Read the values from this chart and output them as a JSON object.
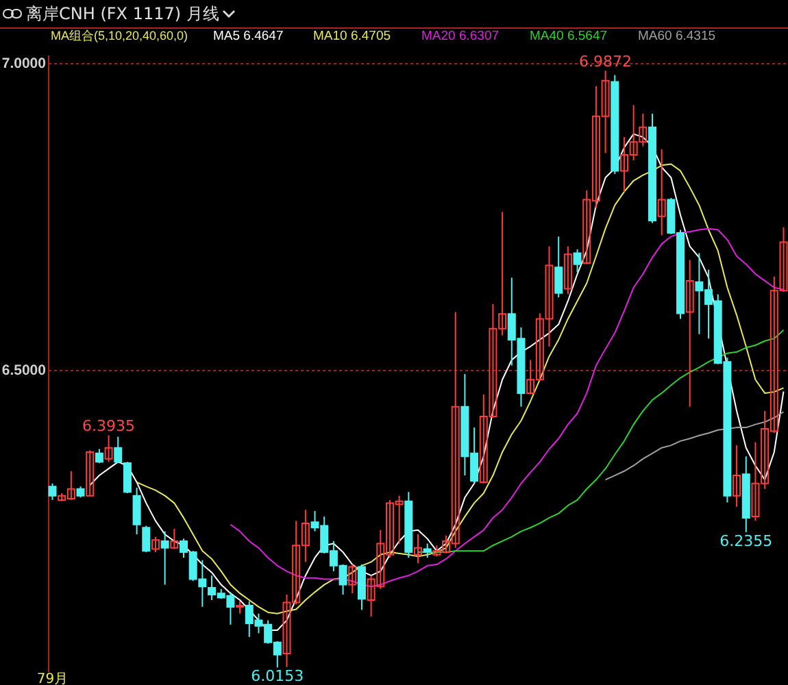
{
  "chart_data": {
    "type": "candlestick",
    "title": "离岸CNH (FX 1117) 月线",
    "legend_title": "MA组合(5,10,20,40,60,0)",
    "categories": [
      "79月",
      null,
      null,
      null,
      null,
      null,
      null,
      null,
      null,
      null,
      null,
      null,
      null,
      null,
      null,
      null,
      null,
      null,
      null,
      null,
      null,
      null,
      null,
      null,
      null,
      null,
      null,
      null,
      null,
      null,
      null,
      null,
      null,
      null,
      null,
      null,
      null,
      null,
      null,
      null,
      null,
      null,
      null,
      null,
      null,
      null,
      null,
      null,
      null,
      null,
      null,
      null,
      null,
      null,
      null,
      null,
      null,
      null,
      null,
      null,
      null,
      null,
      null,
      null,
      null,
      null,
      null,
      null,
      null,
      null,
      null,
      null,
      null,
      null,
      null,
      null,
      null,
      null,
      null
    ],
    "ohlc": [
      [
        6.31,
        6.315,
        6.288,
        6.295
      ],
      [
        6.288,
        6.299,
        6.286,
        6.295
      ],
      [
        6.29,
        6.335,
        6.288,
        6.306
      ],
      [
        6.306,
        6.31,
        6.292,
        6.295
      ],
      [
        6.295,
        6.369,
        6.295,
        6.366
      ],
      [
        6.364,
        6.371,
        6.348,
        6.35
      ],
      [
        6.355,
        6.3935,
        6.35,
        6.373
      ],
      [
        6.373,
        6.391,
        6.348,
        6.35
      ],
      [
        6.348,
        6.35,
        6.299,
        6.301
      ],
      [
        6.295,
        6.308,
        6.232,
        6.248
      ],
      [
        6.243,
        6.246,
        6.203,
        6.205
      ],
      [
        6.208,
        6.228,
        6.203,
        6.223
      ],
      [
        6.221,
        6.237,
        6.15,
        6.21
      ],
      [
        6.21,
        6.241,
        6.208,
        6.221
      ],
      [
        6.221,
        6.225,
        6.194,
        6.203
      ],
      [
        6.203,
        6.205,
        6.156,
        6.159
      ],
      [
        6.159,
        6.19,
        6.114,
        6.147
      ],
      [
        6.145,
        6.165,
        6.125,
        6.134
      ],
      [
        6.136,
        6.143,
        6.127,
        6.129
      ],
      [
        6.132,
        6.138,
        6.085,
        6.114
      ],
      [
        6.114,
        6.123,
        6.103,
        6.116
      ],
      [
        6.116,
        6.123,
        6.065,
        6.087
      ],
      [
        6.092,
        6.103,
        6.071,
        6.083
      ],
      [
        6.085,
        6.092,
        6.054,
        6.056
      ],
      [
        6.056,
        6.058,
        6.0153,
        6.036
      ],
      [
        6.038,
        6.134,
        6.016,
        6.121
      ],
      [
        6.121,
        6.254,
        6.118,
        6.214
      ],
      [
        6.214,
        6.272,
        6.187,
        6.25
      ],
      [
        6.252,
        6.27,
        6.237,
        6.243
      ],
      [
        6.246,
        6.261,
        6.201,
        6.203
      ],
      [
        6.205,
        6.221,
        6.172,
        6.181
      ],
      [
        6.181,
        6.183,
        6.134,
        6.15
      ],
      [
        6.15,
        6.183,
        6.136,
        6.179
      ],
      [
        6.179,
        6.183,
        6.109,
        6.127
      ],
      [
        6.125,
        6.165,
        6.098,
        6.159
      ],
      [
        6.147,
        6.239,
        6.143,
        6.217
      ],
      [
        6.199,
        6.288,
        6.194,
        6.283
      ],
      [
        6.281,
        6.295,
        6.217,
        6.286
      ],
      [
        6.286,
        6.301,
        6.194,
        6.203
      ],
      [
        6.199,
        6.232,
        6.185,
        6.21
      ],
      [
        6.208,
        6.217,
        6.194,
        6.203
      ],
      [
        6.199,
        6.214,
        6.196,
        6.205
      ],
      [
        6.203,
        6.23,
        6.201,
        6.221
      ],
      [
        6.217,
        6.594,
        6.21,
        6.44
      ],
      [
        6.44,
        6.493,
        6.328,
        6.359
      ],
      [
        6.364,
        6.406,
        6.315,
        6.319
      ],
      [
        6.317,
        6.46,
        6.315,
        6.424
      ],
      [
        6.424,
        6.607,
        6.422,
        6.567
      ],
      [
        6.567,
        6.757,
        6.556,
        6.591
      ],
      [
        6.591,
        6.65,
        6.507,
        6.549
      ],
      [
        6.551,
        6.569,
        6.44,
        6.462
      ],
      [
        6.462,
        6.516,
        6.46,
        6.484
      ],
      [
        6.484,
        6.592,
        6.482,
        6.583
      ],
      [
        6.583,
        6.701,
        6.538,
        6.67
      ],
      [
        6.667,
        6.717,
        6.618,
        6.625
      ],
      [
        6.632,
        6.701,
        6.623,
        6.688
      ],
      [
        6.69,
        6.696,
        6.659,
        6.672
      ],
      [
        6.674,
        6.792,
        6.672,
        6.777
      ],
      [
        6.775,
        6.962,
        6.763,
        6.913
      ],
      [
        6.913,
        6.9872,
        6.853,
        6.971
      ],
      [
        6.969,
        6.98,
        6.819,
        6.824
      ],
      [
        6.824,
        6.879,
        6.79,
        6.85
      ],
      [
        6.85,
        6.931,
        6.841,
        6.871
      ],
      [
        6.871,
        6.917,
        6.864,
        6.895
      ],
      [
        6.895,
        6.917,
        6.739,
        6.743
      ],
      [
        6.75,
        6.859,
        6.719,
        6.777
      ],
      [
        6.777,
        6.78,
        6.721,
        6.723
      ],
      [
        6.723,
        6.728,
        6.583,
        6.592
      ],
      [
        6.594,
        6.679,
        6.44,
        6.645
      ],
      [
        6.643,
        6.69,
        6.558,
        6.629
      ],
      [
        6.63,
        6.663,
        6.551,
        6.607
      ],
      [
        6.612,
        6.623,
        6.509,
        6.511
      ],
      [
        6.513,
        6.52,
        6.284,
        6.295
      ],
      [
        6.295,
        6.377,
        6.277,
        6.328
      ],
      [
        6.33,
        6.359,
        6.2355,
        6.259
      ],
      [
        6.261,
        6.382,
        6.254,
        6.315
      ],
      [
        6.315,
        6.433,
        6.306,
        6.404
      ],
      [
        6.4,
        6.652,
        6.397,
        6.629
      ],
      [
        6.629,
        6.732,
        6.627,
        6.708
      ]
    ],
    "series": [
      {
        "name": "MA5 6.4647",
        "type": "line",
        "color": "#ffffff",
        "values": [
          null,
          null,
          null,
          null,
          6.312,
          6.328,
          6.339,
          6.35,
          6.344,
          6.317,
          6.283,
          6.254,
          6.232,
          6.221,
          6.214,
          6.199,
          6.183,
          6.17,
          6.15,
          6.136,
          6.125,
          6.109,
          6.092,
          6.076,
          6.076,
          6.092,
          6.127,
          6.165,
          6.194,
          6.214,
          6.217,
          6.203,
          6.183,
          6.172,
          6.165,
          6.172,
          6.199,
          6.221,
          6.237,
          6.239,
          6.225,
          6.205,
          6.217,
          6.248,
          6.292,
          6.315,
          6.359,
          6.433,
          6.484,
          6.516,
          6.529,
          6.538,
          6.549,
          6.56,
          6.574,
          6.612,
          6.656,
          6.694,
          6.768,
          6.813,
          6.828,
          6.862,
          6.884,
          6.879,
          6.864,
          6.83,
          6.813,
          6.752,
          6.701,
          6.683,
          6.65,
          null,
          null,
          6.433,
          6.373,
          6.344,
          6.321,
          6.366,
          6.4647
        ]
      },
      {
        "name": "MA10 6.4705",
        "type": "line",
        "color": "#e8e85c",
        "values": [
          null,
          null,
          null,
          null,
          null,
          null,
          null,
          null,
          null,
          6.317,
          6.31,
          6.304,
          6.295,
          6.283,
          6.259,
          6.232,
          6.205,
          6.192,
          6.172,
          6.15,
          6.136,
          6.125,
          6.114,
          6.105,
          6.103,
          6.107,
          6.11,
          6.125,
          6.138,
          6.15,
          6.159,
          6.161,
          6.17,
          6.181,
          6.187,
          6.199,
          6.203,
          6.201,
          6.199,
          6.196,
          6.199,
          6.203,
          6.21,
          6.237,
          6.261,
          6.283,
          6.299,
          6.328,
          6.366,
          6.395,
          6.417,
          6.449,
          6.484,
          6.522,
          6.549,
          6.583,
          6.612,
          6.641,
          6.685,
          6.73,
          6.768,
          6.79,
          6.808,
          6.817,
          6.824,
          6.833,
          6.835,
          6.824,
          6.797,
          6.768,
          6.728,
          6.694,
          6.634,
          6.589,
          6.538,
          6.484,
          6.462,
          6.464,
          6.4705
        ]
      },
      {
        "name": "MA20 6.6307",
        "type": "line",
        "color": "#e020e0",
        "values": [
          null,
          null,
          null,
          null,
          null,
          null,
          null,
          null,
          null,
          null,
          null,
          null,
          null,
          null,
          null,
          null,
          null,
          null,
          null,
          6.248,
          6.237,
          6.221,
          6.21,
          6.194,
          6.181,
          6.172,
          6.165,
          6.161,
          6.161,
          6.159,
          6.159,
          6.159,
          6.156,
          6.15,
          6.147,
          6.15,
          6.156,
          6.161,
          6.165,
          6.172,
          6.181,
          6.183,
          6.192,
          6.205,
          6.217,
          6.228,
          6.239,
          6.259,
          6.272,
          6.292,
          6.315,
          6.333,
          6.35,
          6.371,
          6.388,
          6.411,
          6.429,
          6.462,
          6.507,
          6.534,
          6.56,
          6.596,
          6.634,
          6.656,
          6.683,
          6.705,
          6.717,
          6.723,
          6.725,
          6.728,
          6.73,
          6.728,
          6.712,
          6.685,
          6.672,
          6.656,
          6.645,
          6.634,
          6.6307
        ]
      },
      {
        "name": "MA40 6.5647",
        "type": "line",
        "color": "#30d030",
        "values": [
          null,
          null,
          null,
          null,
          null,
          null,
          null,
          null,
          null,
          null,
          null,
          null,
          null,
          null,
          null,
          null,
          null,
          null,
          null,
          null,
          null,
          null,
          null,
          null,
          null,
          null,
          null,
          null,
          null,
          null,
          null,
          null,
          null,
          null,
          null,
          null,
          null,
          null,
          null,
          6.203,
          6.203,
          6.203,
          6.203,
          6.205,
          6.205,
          6.205,
          6.205,
          6.214,
          6.221,
          6.228,
          6.237,
          6.243,
          6.25,
          6.259,
          6.266,
          6.279,
          6.288,
          6.306,
          6.321,
          6.339,
          6.362,
          6.384,
          6.411,
          6.433,
          6.451,
          6.462,
          6.475,
          6.487,
          6.496,
          6.504,
          6.513,
          6.52,
          6.527,
          6.529,
          6.536,
          6.54,
          6.547,
          6.551,
          6.5647
        ]
      },
      {
        "name": "MA60 6.4315",
        "type": "line",
        "color": "#a0a0a0",
        "values": [
          null,
          null,
          null,
          null,
          null,
          null,
          null,
          null,
          null,
          null,
          null,
          null,
          null,
          null,
          null,
          null,
          null,
          null,
          null,
          null,
          null,
          null,
          null,
          null,
          null,
          null,
          null,
          null,
          null,
          null,
          null,
          null,
          null,
          null,
          null,
          null,
          null,
          null,
          null,
          null,
          null,
          null,
          null,
          null,
          null,
          null,
          null,
          null,
          null,
          null,
          null,
          null,
          null,
          null,
          null,
          null,
          null,
          null,
          null,
          6.321,
          6.328,
          6.335,
          6.344,
          6.355,
          6.364,
          6.373,
          6.377,
          6.384,
          6.388,
          6.393,
          6.397,
          6.402,
          6.404,
          6.406,
          6.406,
          6.411,
          6.415,
          6.422,
          6.4315
        ]
      }
    ],
    "ylim": [
      6.009,
      7.013
    ],
    "yticks": [
      {
        "value": 7,
        "label": "7.0000"
      },
      {
        "value": 6.5,
        "label": "6.5000"
      }
    ],
    "grid": "y",
    "legend": "top",
    "annotations": [
      {
        "text": "6.9872",
        "y": 6.9872
      },
      {
        "text": "6.3935",
        "y": 6.3935
      },
      {
        "text": "6.0153",
        "y": 6.0153
      },
      {
        "text": "6.2355",
        "y": 6.2355
      }
    ]
  }
}
